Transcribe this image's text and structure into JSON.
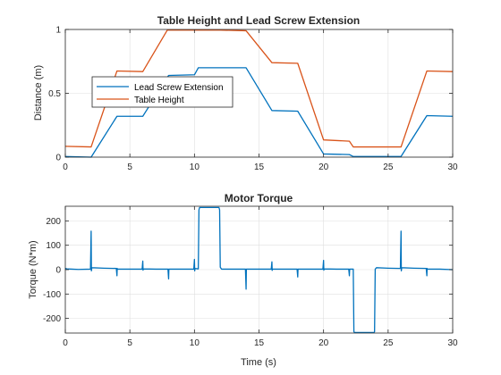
{
  "chart_data": [
    {
      "type": "line",
      "title": "Table Height and Lead Screw Extension",
      "xlabel": "",
      "ylabel": "Distance (m)",
      "xlim": [
        0,
        30
      ],
      "ylim": [
        0,
        1
      ],
      "xticks": [
        0,
        5,
        10,
        15,
        20,
        25,
        30
      ],
      "yticks": [
        0,
        0.5,
        1
      ],
      "grid": true,
      "legend": "center-left",
      "series": [
        {
          "name": "Lead Screw Extension",
          "color": "#0072BD",
          "x": [
            0,
            2,
            4,
            6,
            8,
            10,
            10.3,
            12,
            14,
            16,
            18,
            20,
            22,
            22.3,
            24,
            26,
            28,
            30
          ],
          "y": [
            0.005,
            0.0,
            0.32,
            0.32,
            0.64,
            0.645,
            0.7,
            0.7,
            0.7,
            0.365,
            0.36,
            0.025,
            0.02,
            0.005,
            0.005,
            0.005,
            0.325,
            0.32
          ]
        },
        {
          "name": "Table Height",
          "color": "#D95319",
          "x": [
            0,
            2,
            4,
            6,
            7.9,
            10,
            12,
            14,
            16,
            18,
            20,
            22,
            22.3,
            24,
            26,
            28,
            30
          ],
          "y": [
            0.085,
            0.08,
            0.675,
            0.67,
            0.995,
            0.995,
            0.995,
            0.99,
            0.74,
            0.735,
            0.135,
            0.125,
            0.08,
            0.08,
            0.08,
            0.675,
            0.67
          ]
        }
      ]
    },
    {
      "type": "line",
      "title": "Motor Torque",
      "xlabel": "Time (s)",
      "ylabel": "Torque (N*m)",
      "xlim": [
        0,
        30
      ],
      "ylim": [
        -260,
        260
      ],
      "xticks": [
        0,
        5,
        10,
        15,
        20,
        25,
        30
      ],
      "yticks": [
        -200,
        -100,
        0,
        100,
        200
      ],
      "grid": true,
      "series": [
        {
          "name": "",
          "color": "#0072BD",
          "x": [
            0,
            0.05,
            0.1,
            0.5,
            1,
            1.95,
            2.0,
            2.02,
            2.05,
            3,
            3.95,
            4.0,
            4.02,
            4.05,
            5,
            5.95,
            6.0,
            6.02,
            6.05,
            7,
            7.95,
            8.0,
            8.02,
            8.05,
            9,
            9.95,
            10.0,
            10.02,
            10.05,
            10.3,
            10.35,
            10.4,
            11.9,
            11.95,
            12.0,
            12.1,
            13,
            13.95,
            14.0,
            14.02,
            14.05,
            15,
            15.95,
            16.0,
            16.02,
            16.05,
            17,
            17.95,
            18.0,
            18.02,
            18.05,
            19,
            19.95,
            20.0,
            20.02,
            20.05,
            21,
            21.95,
            22.0,
            22.02,
            22.05,
            22.3,
            22.35,
            22.4,
            23.9,
            23.95,
            24.0,
            24.1,
            25,
            25.95,
            26.0,
            26.02,
            26.05,
            27,
            27.95,
            28.0,
            28.02,
            28.05,
            29,
            30
          ],
          "y": [
            0,
            5,
            3,
            2,
            1,
            2,
            158,
            -5,
            8,
            6,
            5,
            -25,
            5,
            2,
            2,
            2,
            35,
            -2,
            3,
            2,
            2,
            -38,
            2,
            2,
            2,
            2,
            42,
            -5,
            5,
            3,
            245,
            255,
            255,
            245,
            10,
            2,
            2,
            2,
            -80,
            2,
            2,
            2,
            2,
            32,
            -3,
            2,
            2,
            2,
            -30,
            2,
            2,
            2,
            2,
            38,
            -2,
            3,
            2,
            2,
            -25,
            2,
            2,
            2,
            -255,
            -258,
            -258,
            -255,
            2,
            8,
            6,
            5,
            158,
            -5,
            8,
            6,
            5,
            -25,
            5,
            2,
            2,
            0
          ]
        }
      ]
    }
  ]
}
